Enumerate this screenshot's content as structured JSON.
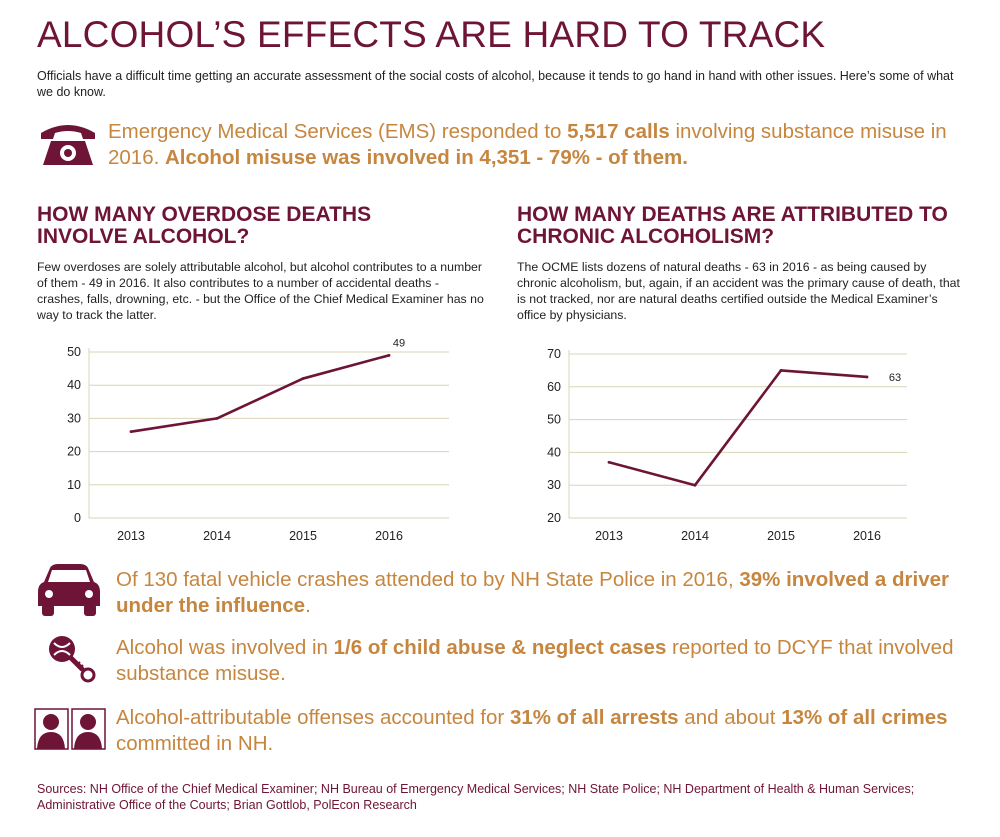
{
  "title": "ALCOHOL’S EFFECTS ARE HARD TO TRACK",
  "intro": "Officials have a difficult time getting an accurate assessment of the social costs of alcohol, because it tends to go hand in hand with other issues. Here’s some of what we do know.",
  "ems": {
    "icon": "telephone-icon",
    "text_1": "Emergency Medical Services (EMS) responded to ",
    "bold_1": "5,517 calls",
    "text_2": " involving substance misuse in 2016. ",
    "bold_2": "Alcohol misuse was involved in 4,351 - 79% - of them."
  },
  "overdose": {
    "heading": "HOW MANY OVERDOSE DEATHS INVOLVE ALCOHOL?",
    "body": "Few overdoses are solely attributable alcohol, but alcohol contributes to a number of them - 49 in 2016. It also contributes to a number of accidental deaths - crashes, falls, drowning, etc. - but the Office of the Chief Medical Examiner has no way to track the latter."
  },
  "chronic": {
    "heading": "HOW MANY DEATHS ARE ATTRIBUTED TO CHRONIC ALCOHOLISM?",
    "body": "The OCME lists dozens of natural deaths - 63 in 2016 - as being caused by chronic alcoholism, but, again, if an accident was the primary cause of death, that is not tracked, nor are natural deaths certified outside the Medical Examiner’s office by physicians."
  },
  "crashes": {
    "icon": "car-icon",
    "text_1": "Of 130 fatal vehicle crashes attended to by NH State Police in 2016, ",
    "bold_1": "39% involved a driver under the influence",
    "text_2": "."
  },
  "child_abuse": {
    "icon": "rattle-icon",
    "text_1": "Alcohol was involved in ",
    "bold_1": "1/6 of child abuse & neglect cases",
    "text_2": " reported to DCYF that involved substance misuse."
  },
  "arrests": {
    "icon": "mugshot-icon",
    "text_1": "Alcohol-attributable offenses accounted for ",
    "bold_1": "31% of all arrests",
    "text_2": " and about ",
    "bold_2": "13% of all crimes",
    "text_3": " committed in NH."
  },
  "sources": "Sources: NH Office of the Chief Medical Examiner; NH Bureau of Emergency Medical Services; NH State Police; NH Department of Health & Human Services; Administrative Office of the Courts; Brian Gottlob, PolEcon Research",
  "colors": {
    "maroon": "#6e1436",
    "gold": "#c6863f",
    "grid": "#d8d5b4"
  },
  "chart_data": [
    {
      "type": "line",
      "categories": [
        "2013",
        "2014",
        "2015",
        "2016"
      ],
      "series": [
        {
          "values": [
            26,
            30,
            42,
            49
          ]
        }
      ],
      "ylim": [
        0,
        50
      ],
      "yticks": [
        0,
        10,
        20,
        30,
        40,
        50
      ],
      "end_label": "49",
      "grid": true
    },
    {
      "type": "line",
      "categories": [
        "2013",
        "2014",
        "2015",
        "2016"
      ],
      "series": [
        {
          "values": [
            37,
            30,
            65,
            63
          ]
        }
      ],
      "ylim": [
        20,
        70
      ],
      "yticks": [
        20,
        30,
        40,
        50,
        60,
        70
      ],
      "end_label": "63",
      "grid": true
    }
  ]
}
